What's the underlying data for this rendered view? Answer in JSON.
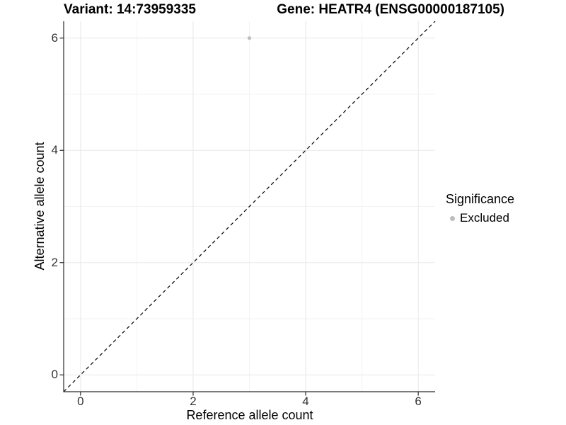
{
  "titles": {
    "variant": "Variant: 14:73959335",
    "gene": "Gene: HEATR4 (ENSG00000187105)"
  },
  "axes": {
    "x": {
      "label": "Reference allele count",
      "ticks": [
        "0",
        "2",
        "4",
        "6"
      ]
    },
    "y": {
      "label": "Alternative allele count",
      "ticks": [
        "0",
        "2",
        "4",
        "6"
      ]
    }
  },
  "legend": {
    "title": "Significance",
    "position": "right",
    "items": [
      {
        "label": "Excluded",
        "color": "#bdbdbd"
      }
    ]
  },
  "colors": {
    "background": "#ffffff",
    "point": "#bdbdbd",
    "grid_major": "#e8e8e8",
    "grid_minor": "#f3f3f3",
    "axis": "#2b2b2b",
    "diagonal": "#000000",
    "tick_label": "#333333"
  },
  "chart_data": {
    "type": "scatter",
    "title": "Variant: 14:73959335 | Gene: HEATR4 (ENSG00000187105)",
    "xlabel": "Reference allele count",
    "ylabel": "Alternative allele count",
    "xlim": [
      -0.3,
      6.3
    ],
    "ylim": [
      -0.3,
      6.3
    ],
    "x_ticks": [
      0,
      2,
      4,
      6
    ],
    "y_ticks": [
      0,
      2,
      4,
      6
    ],
    "x_minor": [
      1,
      3,
      5
    ],
    "y_minor": [
      1,
      3,
      5
    ],
    "grid": "major+minor",
    "legend_position": "right",
    "series": [
      {
        "name": "Excluded",
        "color": "#bdbdbd",
        "points": [
          {
            "x": 3,
            "y": 6
          }
        ]
      }
    ],
    "reference_line": {
      "style": "dashed",
      "equation": "y = x",
      "from": [
        -0.3,
        -0.3
      ],
      "to": [
        6.3,
        6.3
      ]
    }
  }
}
